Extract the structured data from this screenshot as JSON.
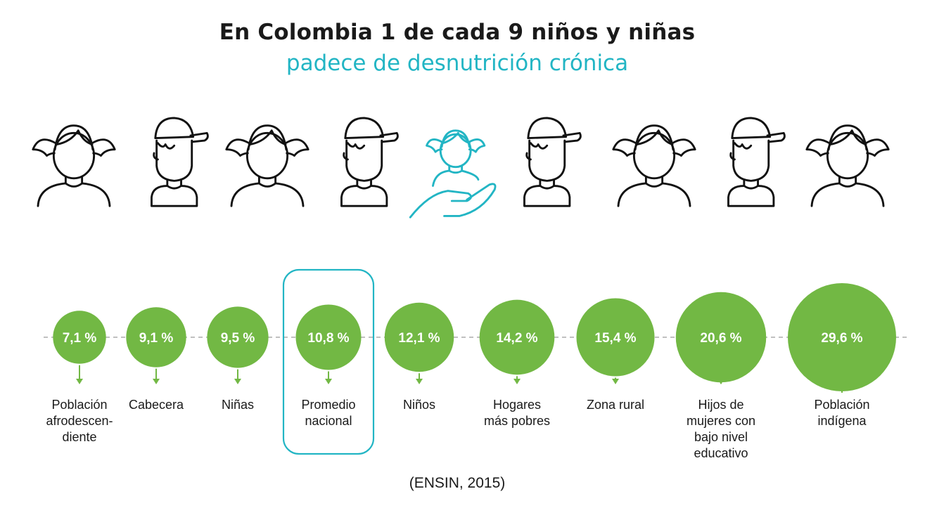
{
  "title": "En Colombia 1 de cada 9 niños y niñas",
  "subtitle": "padece de desnutrición crónica",
  "source": "(ENSIN, 2015)",
  "colors": {
    "accent": "#22b5c4",
    "bubble": "#72b844",
    "icon": "#111111"
  },
  "figures": [
    {
      "icon": "girl-icon"
    },
    {
      "icon": "boy-cap-icon"
    },
    {
      "icon": "girl-icon"
    },
    {
      "icon": "boy-cap-icon"
    },
    {
      "icon": "girl-hand-icon"
    },
    {
      "icon": "boy-cap-icon"
    },
    {
      "icon": "girl-icon"
    },
    {
      "icon": "boy-cap-icon"
    },
    {
      "icon": "girl-icon"
    }
  ],
  "chart_data": {
    "type": "bubble",
    "highlight": "Promedio nacional",
    "items": [
      {
        "label": "7,1 %",
        "value": 7.1,
        "category": [
          "Población",
          "afrodescen-",
          "diente"
        ]
      },
      {
        "label": "9,1 %",
        "value": 9.1,
        "category": [
          "Cabecera"
        ]
      },
      {
        "label": "9,5 %",
        "value": 9.5,
        "category": [
          "Niñas"
        ]
      },
      {
        "label": "10,8 %",
        "value": 10.8,
        "category": [
          "Promedio",
          "nacional"
        ]
      },
      {
        "label": "12,1 %",
        "value": 12.1,
        "category": [
          "Niños"
        ]
      },
      {
        "label": "14,2 %",
        "value": 14.2,
        "category": [
          "Hogares",
          "más pobres"
        ]
      },
      {
        "label": "15,4 %",
        "value": 15.4,
        "category": [
          "Zona rural"
        ]
      },
      {
        "label": "20,6 %",
        "value": 20.6,
        "category": [
          "Hijos de",
          "mujeres con",
          "bajo nivel",
          "educativo"
        ]
      },
      {
        "label": "29,6 %",
        "value": 29.6,
        "category": [
          "Población",
          "indígena"
        ]
      }
    ]
  }
}
